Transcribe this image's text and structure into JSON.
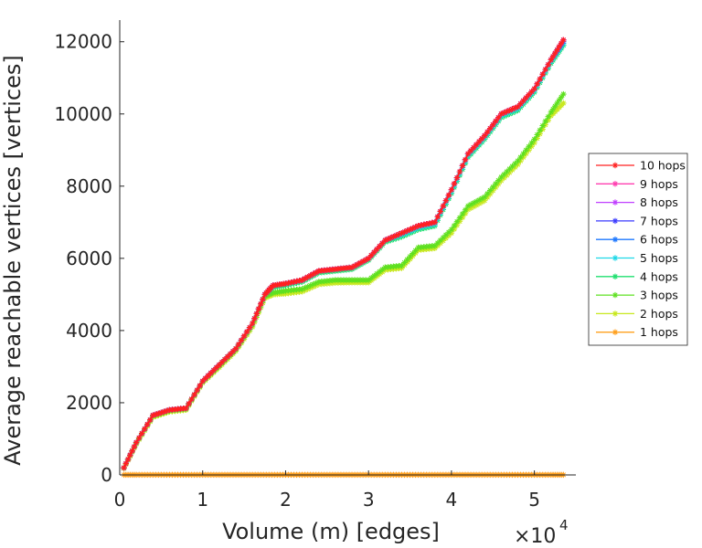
{
  "chart_data": {
    "type": "line",
    "title": "",
    "xlabel": "Volume (m) [edges]",
    "ylabel": "Average reachable vertices [vertices]",
    "x_multiplier_base": "×10",
    "x_multiplier_exp": "4",
    "xlim": [
      0,
      5.5
    ],
    "ylim": [
      0,
      12600
    ],
    "xticks": [
      0,
      1,
      2,
      3,
      4,
      5
    ],
    "xtick_labels": [
      "0",
      "1",
      "2",
      "3",
      "4",
      "5"
    ],
    "yticks": [
      0,
      2000,
      4000,
      6000,
      8000,
      10000,
      12000
    ],
    "ytick_labels": [
      "0",
      "2000",
      "4000",
      "6000",
      "8000",
      "10000",
      "12000"
    ],
    "grid": false,
    "legend_position": "right",
    "marker": "asterisk",
    "series": [
      {
        "name": "10 hops",
        "color": "#ff2020",
        "x": [
          0.05,
          0.2,
          0.4,
          0.6,
          0.8,
          1.0,
          1.2,
          1.4,
          1.6,
          1.75,
          1.85,
          2.0,
          2.2,
          2.4,
          2.6,
          2.8,
          3.0,
          3.2,
          3.4,
          3.6,
          3.8,
          4.0,
          4.2,
          4.4,
          4.6,
          4.8,
          5.0,
          5.2,
          5.35
        ],
        "y": [
          200,
          900,
          1650,
          1800,
          1850,
          2600,
          3050,
          3500,
          4200,
          5000,
          5250,
          5300,
          5400,
          5650,
          5700,
          5750,
          6000,
          6500,
          6700,
          6900,
          7000,
          7900,
          8900,
          9400,
          10000,
          10200,
          10700,
          11500,
          12050
        ]
      },
      {
        "name": "9 hops",
        "color": "#ff3fb0",
        "x": [
          0.05,
          0.2,
          0.4,
          0.6,
          0.8,
          1.0,
          1.2,
          1.4,
          1.6,
          1.75,
          1.85,
          2.0,
          2.2,
          2.4,
          2.6,
          2.8,
          3.0,
          3.2,
          3.4,
          3.6,
          3.8,
          4.0,
          4.2,
          4.4,
          4.6,
          4.8,
          5.0,
          5.2,
          5.35
        ],
        "y": [
          200,
          900,
          1650,
          1800,
          1850,
          2600,
          3050,
          3500,
          4200,
          5000,
          5250,
          5300,
          5400,
          5650,
          5700,
          5750,
          6000,
          6500,
          6700,
          6900,
          7000,
          7900,
          8900,
          9400,
          10000,
          10200,
          10700,
          11500,
          12050
        ]
      },
      {
        "name": "8 hops",
        "color": "#c040ff",
        "x": [
          0.05,
          0.2,
          0.4,
          0.6,
          0.8,
          1.0,
          1.2,
          1.4,
          1.6,
          1.75,
          1.85,
          2.0,
          2.2,
          2.4,
          2.6,
          2.8,
          3.0,
          3.2,
          3.4,
          3.6,
          3.8,
          4.0,
          4.2,
          4.4,
          4.6,
          4.8,
          5.0,
          5.2,
          5.35
        ],
        "y": [
          200,
          900,
          1650,
          1800,
          1850,
          2600,
          3050,
          3500,
          4200,
          5000,
          5250,
          5300,
          5400,
          5650,
          5700,
          5750,
          6000,
          6500,
          6700,
          6900,
          7000,
          7900,
          8900,
          9400,
          10000,
          10200,
          10700,
          11500,
          12050
        ]
      },
      {
        "name": "7 hops",
        "color": "#3a3aff",
        "x": [
          0.05,
          0.2,
          0.4,
          0.6,
          0.8,
          1.0,
          1.2,
          1.4,
          1.6,
          1.75,
          1.85,
          2.0,
          2.2,
          2.4,
          2.6,
          2.8,
          3.0,
          3.2,
          3.4,
          3.6,
          3.8,
          4.0,
          4.2,
          4.4,
          4.6,
          4.8,
          5.0,
          5.2,
          5.35
        ],
        "y": [
          200,
          900,
          1650,
          1800,
          1850,
          2600,
          3050,
          3500,
          4200,
          5000,
          5250,
          5300,
          5400,
          5650,
          5700,
          5750,
          6000,
          6500,
          6700,
          6900,
          7000,
          7900,
          8900,
          9400,
          10000,
          10200,
          10700,
          11500,
          12050
        ]
      },
      {
        "name": "6 hops",
        "color": "#1e78ff",
        "x": [
          0.05,
          0.2,
          0.4,
          0.6,
          0.8,
          1.0,
          1.2,
          1.4,
          1.6,
          1.75,
          1.85,
          2.0,
          2.2,
          2.4,
          2.6,
          2.8,
          3.0,
          3.2,
          3.4,
          3.6,
          3.8,
          4.0,
          4.2,
          4.4,
          4.6,
          4.8,
          5.0,
          5.2,
          5.35
        ],
        "y": [
          200,
          900,
          1650,
          1800,
          1850,
          2600,
          3050,
          3500,
          4200,
          5000,
          5250,
          5300,
          5400,
          5650,
          5700,
          5750,
          6000,
          6500,
          6700,
          6900,
          7000,
          7900,
          8900,
          9400,
          10000,
          10200,
          10700,
          11500,
          12000
        ]
      },
      {
        "name": "5 hops",
        "color": "#1ed8e8",
        "x": [
          0.05,
          0.2,
          0.4,
          0.6,
          0.8,
          1.0,
          1.2,
          1.4,
          1.6,
          1.75,
          1.85,
          2.0,
          2.2,
          2.4,
          2.6,
          2.8,
          3.0,
          3.2,
          3.4,
          3.6,
          3.8,
          4.0,
          4.2,
          4.4,
          4.6,
          4.8,
          5.0,
          5.2,
          5.35
        ],
        "y": [
          200,
          900,
          1650,
          1800,
          1850,
          2600,
          3050,
          3500,
          4200,
          5000,
          5250,
          5300,
          5400,
          5650,
          5700,
          5750,
          6000,
          6500,
          6650,
          6850,
          6950,
          7850,
          8850,
          9350,
          9950,
          10150,
          10650,
          11450,
          11950
        ]
      },
      {
        "name": "4 hops",
        "color": "#20e070",
        "x": [
          0.05,
          0.2,
          0.4,
          0.6,
          0.8,
          1.0,
          1.2,
          1.4,
          1.6,
          1.75,
          1.85,
          2.0,
          2.2,
          2.4,
          2.6,
          2.8,
          3.0,
          3.2,
          3.4,
          3.6,
          3.8,
          4.0,
          4.2,
          4.4,
          4.6,
          4.8,
          5.0,
          5.2,
          5.35
        ],
        "y": [
          200,
          900,
          1650,
          1800,
          1850,
          2600,
          3050,
          3500,
          4200,
          5000,
          5200,
          5250,
          5350,
          5600,
          5650,
          5700,
          5950,
          6450,
          6600,
          6800,
          6900,
          7800,
          8800,
          9300,
          9900,
          10100,
          10600,
          11400,
          11900
        ]
      },
      {
        "name": "3 hops",
        "color": "#5ee020",
        "x": [
          0.05,
          0.2,
          0.4,
          0.6,
          0.8,
          1.0,
          1.2,
          1.4,
          1.6,
          1.75,
          1.85,
          2.0,
          2.2,
          2.4,
          2.6,
          2.8,
          3.0,
          3.2,
          3.4,
          3.6,
          3.8,
          4.0,
          4.2,
          4.4,
          4.6,
          4.8,
          5.0,
          5.2,
          5.35
        ],
        "y": [
          200,
          880,
          1630,
          1780,
          1830,
          2580,
          3020,
          3470,
          4150,
          4950,
          5050,
          5100,
          5150,
          5350,
          5400,
          5400,
          5400,
          5750,
          5800,
          6300,
          6350,
          6800,
          7450,
          7700,
          8250,
          8700,
          9300,
          10050,
          10550
        ]
      },
      {
        "name": "2 hops",
        "color": "#c8e81e",
        "x": [
          0.05,
          0.2,
          0.4,
          0.6,
          0.8,
          1.0,
          1.2,
          1.4,
          1.6,
          1.75,
          1.85,
          2.0,
          2.2,
          2.4,
          2.6,
          2.8,
          3.0,
          3.2,
          3.4,
          3.6,
          3.8,
          4.0,
          4.2,
          4.4,
          4.6,
          4.8,
          5.0,
          5.2,
          5.35
        ],
        "y": [
          180,
          860,
          1600,
          1750,
          1800,
          2550,
          2980,
          3430,
          4100,
          4900,
          5000,
          5020,
          5080,
          5280,
          5320,
          5330,
          5330,
          5680,
          5730,
          6230,
          6280,
          6700,
          7350,
          7600,
          8150,
          8600,
          9200,
          9950,
          10300
        ]
      },
      {
        "name": "1 hops",
        "color": "#ffa01e",
        "x": [
          0.05,
          0.2,
          0.4,
          0.6,
          0.8,
          1.0,
          1.2,
          1.4,
          1.6,
          1.8,
          2.0,
          2.2,
          2.4,
          2.6,
          2.8,
          3.0,
          3.2,
          3.4,
          3.6,
          3.8,
          4.0,
          4.2,
          4.4,
          4.6,
          4.8,
          5.0,
          5.2,
          5.35
        ],
        "y": [
          3,
          3,
          3,
          3,
          3,
          3,
          3,
          3,
          3,
          3,
          3,
          3,
          3,
          3,
          3,
          3,
          3,
          3,
          3,
          3,
          3,
          3,
          3,
          3,
          3,
          3,
          3,
          3
        ]
      }
    ]
  }
}
